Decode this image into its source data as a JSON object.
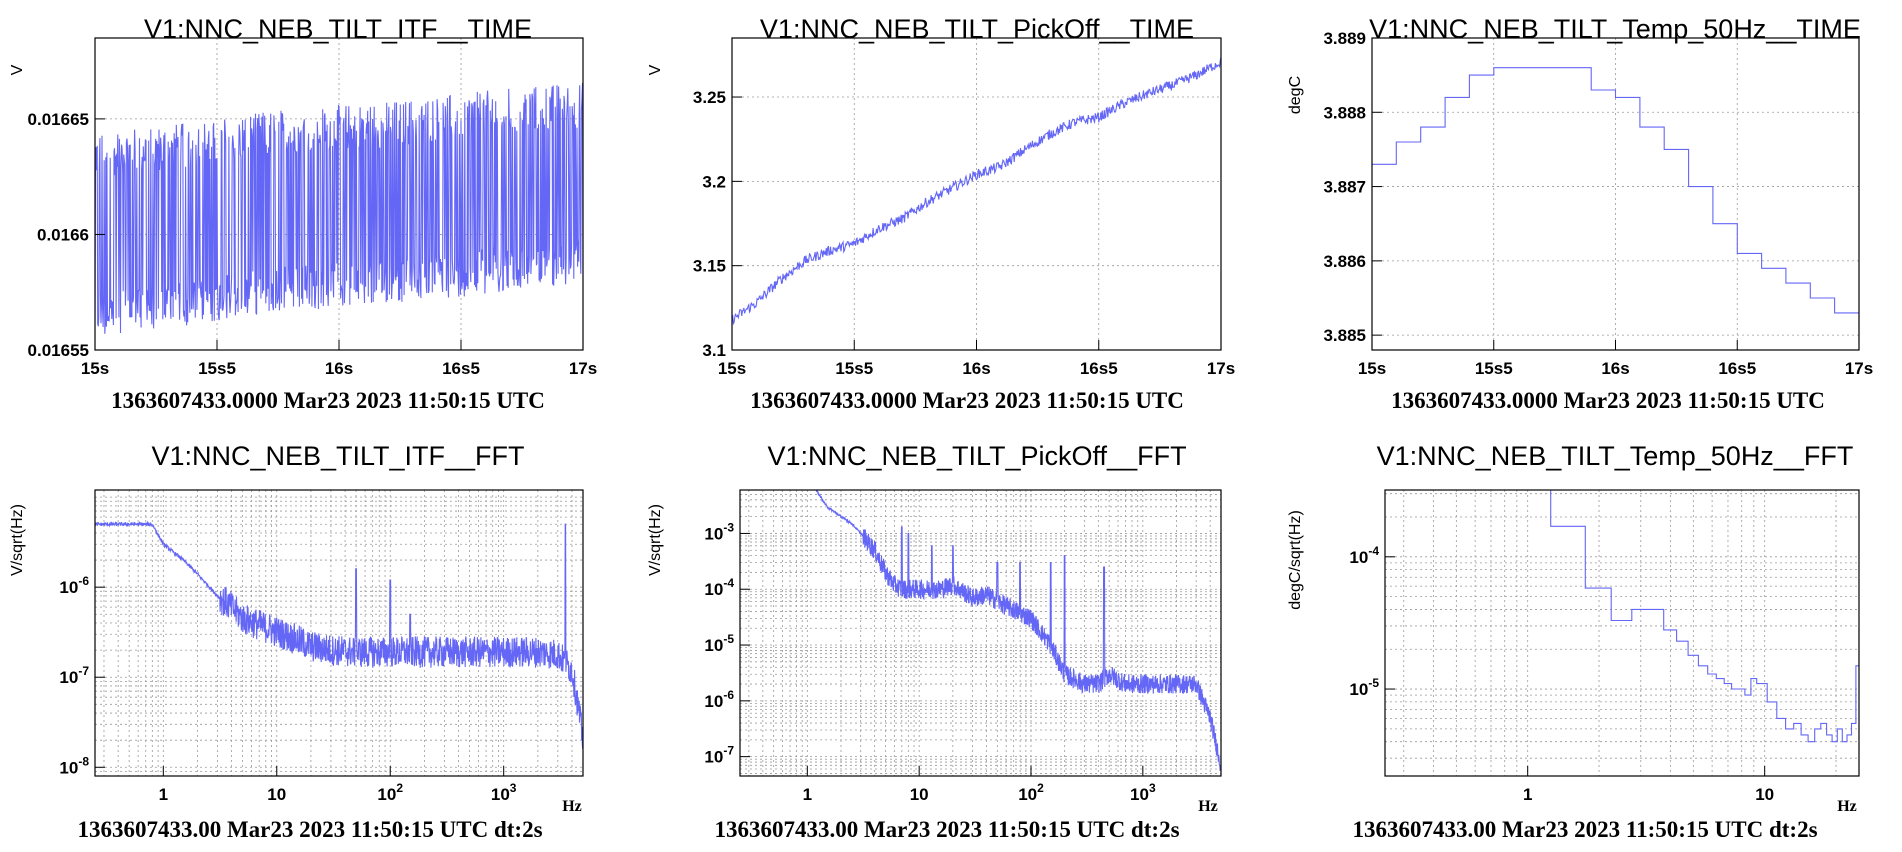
{
  "chart_data": [
    {
      "type": "line",
      "title": "V1:NNC_NEB_TILT_ITF__TIME",
      "ylabel": "V",
      "xlabel": "",
      "caption": "1363607433.0000 Mar23 2023 11:50:15 UTC",
      "x_scale": "linear",
      "y_scale": "linear",
      "xlim": [
        15,
        17
      ],
      "ylim": [
        0.01655,
        0.016685
      ],
      "xticks": [
        15,
        15.5,
        16,
        16.5,
        17
      ],
      "xtick_labels": [
        "15s",
        "15s5",
        "16s",
        "16s5",
        "17s"
      ],
      "yticks": [
        0.01655,
        0.0166,
        0.01665
      ],
      "ytick_labels": [
        "0.01655",
        "0.0166",
        "0.01665"
      ],
      "grid": true,
      "color": "#6466f6",
      "series": [
        {
          "x": [
            15,
            15.25,
            15.5,
            15.75,
            16,
            16.25,
            16.5,
            16.75,
            17
          ],
          "y_center": [
            0.0166,
            0.016603,
            0.016606,
            0.01661,
            0.016612,
            0.016614,
            0.016617,
            0.01662,
            0.016622
          ],
          "y_spread": 4.4e-05
        }
      ]
    },
    {
      "type": "line",
      "title": "V1:NNC_NEB_TILT_PickOff__TIME",
      "ylabel": "V",
      "xlabel": "",
      "caption": "1363607433.0000 Mar23 2023 11:50:15 UTC",
      "x_scale": "linear",
      "y_scale": "linear",
      "xlim": [
        15,
        17
      ],
      "ylim": [
        3.1,
        3.285
      ],
      "xticks": [
        15,
        15.5,
        16,
        16.5,
        17
      ],
      "xtick_labels": [
        "15s",
        "15s5",
        "16s",
        "16s5",
        "17s"
      ],
      "yticks": [
        3.1,
        3.15,
        3.2,
        3.25
      ],
      "ytick_labels": [
        "3.1",
        "3.15",
        "3.2",
        "3.25"
      ],
      "grid": true,
      "color": "#6466f6",
      "series": [
        {
          "x": [
            15,
            15.1,
            15.2,
            15.3,
            15.4,
            15.5,
            15.6,
            15.7,
            15.8,
            15.9,
            16,
            16.1,
            16.2,
            16.3,
            16.4,
            16.5,
            16.6,
            16.7,
            16.8,
            16.9,
            17
          ],
          "y": [
            3.118,
            3.128,
            3.142,
            3.153,
            3.159,
            3.163,
            3.172,
            3.178,
            3.188,
            3.196,
            3.204,
            3.209,
            3.219,
            3.228,
            3.235,
            3.238,
            3.246,
            3.252,
            3.257,
            3.263,
            3.271
          ]
        }
      ]
    },
    {
      "type": "line",
      "title": "V1:NNC_NEB_TILT_Temp_50Hz__TIME",
      "ylabel": "degC",
      "xlabel": "",
      "caption": "1363607433.0000 Mar23 2023 11:50:15 UTC",
      "x_scale": "linear",
      "y_scale": "linear",
      "xlim": [
        15,
        17
      ],
      "ylim": [
        3.8848,
        3.889
      ],
      "xticks": [
        15,
        15.5,
        16,
        16.5,
        17
      ],
      "xtick_labels": [
        "15s",
        "15s5",
        "16s",
        "16s5",
        "17s"
      ],
      "yticks": [
        3.885,
        3.886,
        3.887,
        3.888,
        3.889
      ],
      "ytick_labels": [
        "3.885",
        "3.886",
        "3.887",
        "3.888",
        "3.889"
      ],
      "grid": true,
      "color": "#6466f6",
      "series": [
        {
          "x": [
            15,
            15.1,
            15.2,
            15.3,
            15.4,
            15.5,
            15.6,
            15.7,
            15.8,
            15.9,
            16,
            16.1,
            16.2,
            16.3,
            16.4,
            16.5,
            16.6,
            16.7,
            16.8,
            16.9,
            17
          ],
          "y": [
            3.8873,
            3.8876,
            3.8878,
            3.8882,
            3.8885,
            3.8886,
            3.8886,
            3.8886,
            3.8886,
            3.8883,
            3.8882,
            3.8878,
            3.8875,
            3.887,
            3.8865,
            3.8861,
            3.8859,
            3.8857,
            3.8855,
            3.8853,
            3.8849
          ],
          "step": true
        }
      ]
    },
    {
      "type": "line",
      "title": "V1:NNC_NEB_TILT_ITF__FFT",
      "ylabel": "V/sqrt(Hz)",
      "xlabel": "Hz",
      "caption": "1363607433.00 Mar23 2023 11:50:15 UTC dt:2s",
      "x_scale": "log",
      "y_scale": "log",
      "xlim": [
        0.25,
        5000
      ],
      "ylim": [
        8e-09,
        1.2e-05
      ],
      "xticks": [
        1,
        10,
        100,
        1000
      ],
      "xtick_labels": [
        "1",
        "10",
        "10^2",
        "10^3"
      ],
      "yticks": [
        1e-08,
        1e-07,
        1e-06
      ],
      "ytick_labels": [
        "10^-8",
        "10^-7",
        "10^-6"
      ],
      "grid": true,
      "color": "#6466f6",
      "series": [
        {
          "x": [
            0.25,
            0.8,
            1.0,
            1.5,
            2,
            3,
            4,
            5,
            7,
            10,
            15,
            20,
            30,
            50,
            70,
            100,
            150,
            200,
            300,
            500,
            700,
            1000,
            1500,
            2000,
            3000,
            4000,
            4500,
            5000
          ],
          "y": [
            5e-06,
            5e-06,
            3e-06,
            2e-06,
            1.4e-06,
            8e-07,
            6e-07,
            4.5e-07,
            3.8e-07,
            3.2e-07,
            2.6e-07,
            2.2e-07,
            2e-07,
            1.9e-07,
            1.9e-07,
            1.9e-07,
            1.9e-07,
            1.9e-07,
            1.9e-07,
            1.9e-07,
            1.9e-07,
            1.9e-07,
            1.9e-07,
            1.9e-07,
            1.8e-07,
            1.2e-07,
            5e-08,
            2e-08
          ],
          "peaks": [
            [
              50,
              1.6e-06
            ],
            [
              100,
              1.2e-06
            ],
            [
              150,
              5e-07
            ],
            [
              3500,
              5e-06
            ]
          ]
        }
      ]
    },
    {
      "type": "line",
      "title": "V1:NNC_NEB_TILT_PickOff__FFT",
      "ylabel": "V/sqrt(Hz)",
      "xlabel": "Hz",
      "caption": "1363607433.00 Mar23 2023 11:50:15 UTC dt:2s",
      "x_scale": "log",
      "y_scale": "log",
      "xlim": [
        0.25,
        5000
      ],
      "ylim": [
        4.5e-08,
        0.006
      ],
      "xticks": [
        1,
        10,
        100,
        1000
      ],
      "xtick_labels": [
        "1",
        "10",
        "10^2",
        "10^3"
      ],
      "yticks": [
        1e-07,
        1e-06,
        1e-05,
        0.0001,
        0.001
      ],
      "ytick_labels": [
        "10^-7",
        "10^-6",
        "10^-5",
        "10^-4",
        "10^-3"
      ],
      "grid": true,
      "color": "#6466f6",
      "series": [
        {
          "x": [
            1.2,
            1.5,
            2,
            2.5,
            3,
            4,
            5,
            6,
            7,
            8,
            10,
            15,
            20,
            30,
            40,
            60,
            100,
            150,
            200,
            300,
            400,
            500,
            700,
            1000,
            1500,
            2000,
            3000,
            4000,
            5000
          ],
          "y": [
            0.006,
            0.003,
            0.002,
            0.0015,
            0.001,
            0.0005,
            0.0002,
            0.00012,
            0.0001,
            0.0001,
            0.0001,
            0.0001,
            0.00012,
            7e-05,
            8e-05,
            5e-05,
            3e-05,
            1e-05,
            3e-06,
            2e-06,
            2e-06,
            3e-06,
            2e-06,
            2e-06,
            2e-06,
            2e-06,
            2e-06,
            5e-07,
            7e-08
          ],
          "peaks": [
            [
              7,
              0.0013
            ],
            [
              8,
              0.001
            ],
            [
              13,
              0.0006
            ],
            [
              20,
              0.0006
            ],
            [
              50,
              0.0003
            ],
            [
              80,
              0.0003
            ],
            [
              150,
              0.0003
            ],
            [
              200,
              0.0004
            ],
            [
              450,
              0.00025
            ]
          ]
        }
      ]
    },
    {
      "type": "line",
      "title": "V1:NNC_NEB_TILT_Temp_50Hz__FFT",
      "ylabel": "degC/sqrt(Hz)",
      "xlabel": "Hz",
      "caption": "1363607433.00 Mar23 2023 11:50:15 UTC dt:2s",
      "x_scale": "log",
      "y_scale": "log",
      "xlim": [
        0.25,
        25
      ],
      "ylim": [
        2.2e-06,
        0.00032
      ],
      "xticks": [
        1,
        10
      ],
      "xtick_labels": [
        "1",
        "10"
      ],
      "yticks": [
        1e-05,
        0.0001
      ],
      "ytick_labels": [
        "10^-5",
        "10^-4"
      ],
      "grid": true,
      "color": "#6466f6",
      "series": [
        {
          "x": [
            0.25,
            1.25,
            1.25,
            1.75,
            1.75,
            2.25,
            2.25,
            2.75,
            2.75,
            3.75,
            3.75,
            4.25,
            4.75,
            5.25,
            5.75,
            6.25,
            6.75,
            7.25,
            7.75,
            8.25,
            8.75,
            9.25,
            10.25,
            11.25,
            12.25,
            13.25,
            14.25,
            15.25,
            16.25,
            17.25,
            18.25,
            19.25,
            20.25,
            21.25,
            22.25,
            23.25,
            24.25,
            25
          ],
          "y": [
            0.00032,
            0.00032,
            0.00017,
            0.00017,
            5.8e-05,
            5.8e-05,
            3.3e-05,
            3.3e-05,
            4e-05,
            4e-05,
            2.8e-05,
            2.3e-05,
            1.8e-05,
            1.5e-05,
            1.3e-05,
            1.2e-05,
            1.1e-05,
            1e-05,
            1e-05,
            9e-06,
            1.2e-05,
            1.1e-05,
            8e-06,
            6e-06,
            5e-06,
            5.5e-06,
            4.5e-06,
            4e-06,
            5e-06,
            5.5e-06,
            4.5e-06,
            4e-06,
            5e-06,
            4e-06,
            4.5e-06,
            5.5e-06,
            1.5e-05,
            3e-05
          ],
          "step": true
        }
      ]
    }
  ]
}
